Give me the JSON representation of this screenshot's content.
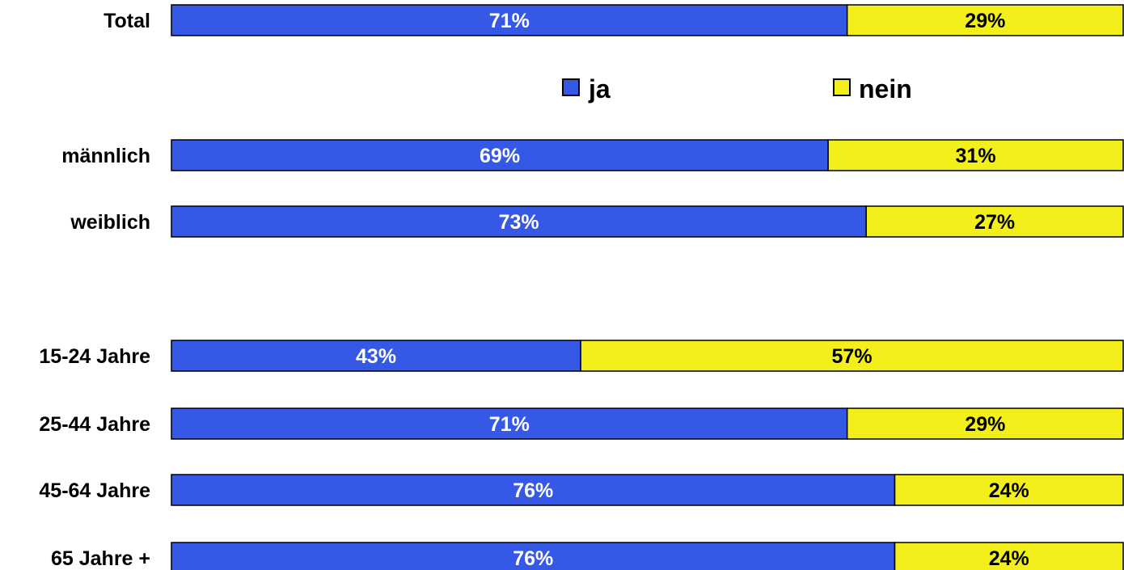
{
  "chart_data": {
    "type": "bar",
    "orientation": "horizontal",
    "stacked": true,
    "percent_stacked": true,
    "categories": [
      "Total",
      "männlich",
      "weiblich",
      "15-24 Jahre",
      "25-44 Jahre",
      "45-64 Jahre",
      "65 Jahre +"
    ],
    "series": [
      {
        "name": "ja",
        "color": "#3558e6",
        "values": [
          71,
          69,
          73,
          43,
          71,
          76,
          76
        ],
        "labels": [
          "71%",
          "69%",
          "73%",
          "43%",
          "71%",
          "76%",
          "76%"
        ]
      },
      {
        "name": "nein",
        "color": "#f2ef1a",
        "values": [
          29,
          31,
          27,
          57,
          29,
          24,
          24
        ],
        "labels": [
          "29%",
          "31%",
          "27%",
          "57%",
          "29%",
          "24%",
          "24%"
        ]
      }
    ],
    "xlim": [
      0,
      100
    ],
    "grid": false,
    "legend_position": "top-right",
    "title": "",
    "xlabel": "",
    "ylabel": ""
  }
}
